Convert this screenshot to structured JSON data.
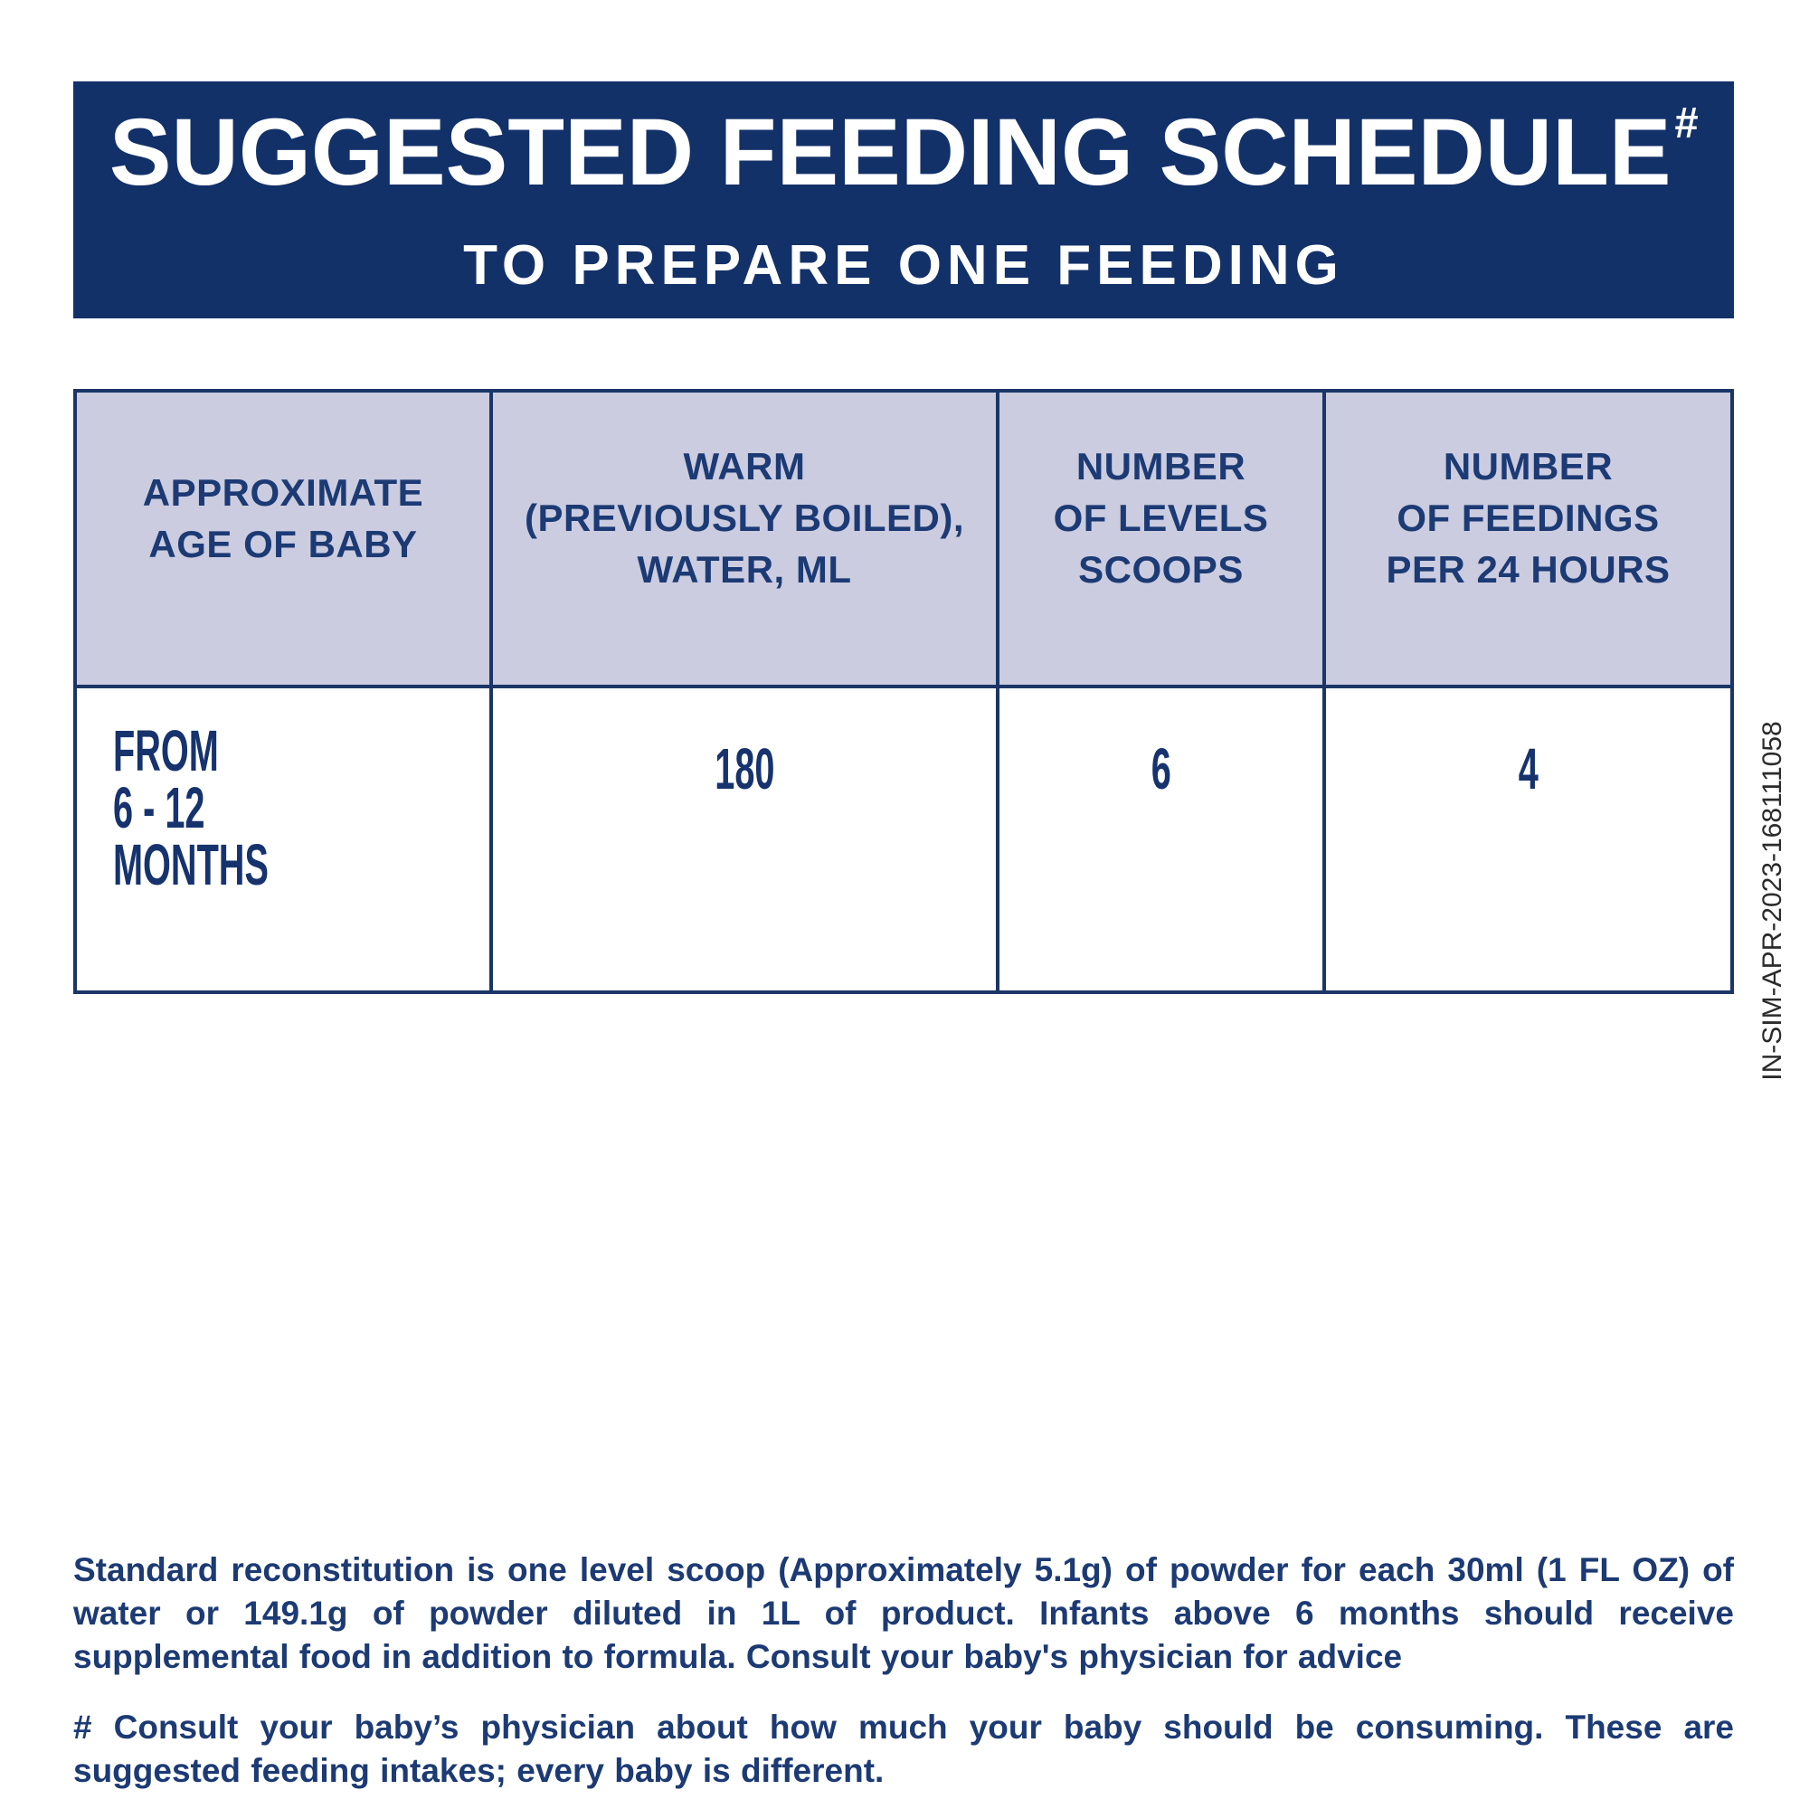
{
  "banner": {
    "title": "SUGGESTED FEEDING SCHEDULE",
    "title_superscript": "#",
    "subtitle": "TO PREPARE ONE FEEDING"
  },
  "table": {
    "headers": {
      "age": "APPROXIMATE\nAGE OF BABY",
      "water": "WARM\n(PREVIOUSLY BOILED),\nWATER, ML",
      "scoops": "NUMBER\nOF LEVELS\nSCOOPS",
      "feedings": "NUMBER\nOF FEEDINGS\nPER 24 HOURS"
    },
    "row": {
      "age": "FROM\n6 - 12 MONTHS",
      "water_ml": "180",
      "scoops": "6",
      "feedings": "4"
    }
  },
  "side_code": "IN-SIM-APR-2023-168111058",
  "notes": {
    "reconstitution": "Standard reconstitution is one level scoop (Approximately 5.1g) of powder for each 30ml (1 FL OZ) of water or 149.1g of powder diluted in 1L of product. Infants above 6 months should receive supplemental food in addition to formula. Consult your baby's physician for advice",
    "hash_note": "# Consult your baby’s physician about how much your baby should be consuming. These are suggested feeding intakes; every baby is different."
  },
  "colors": {
    "banner_bg": "#133169",
    "table_border": "#1b3566",
    "table_header_bg": "#cbcce0",
    "navy_text": "#1c3a74",
    "data_text": "#16336e",
    "code_text": "#2b2b2b"
  }
}
